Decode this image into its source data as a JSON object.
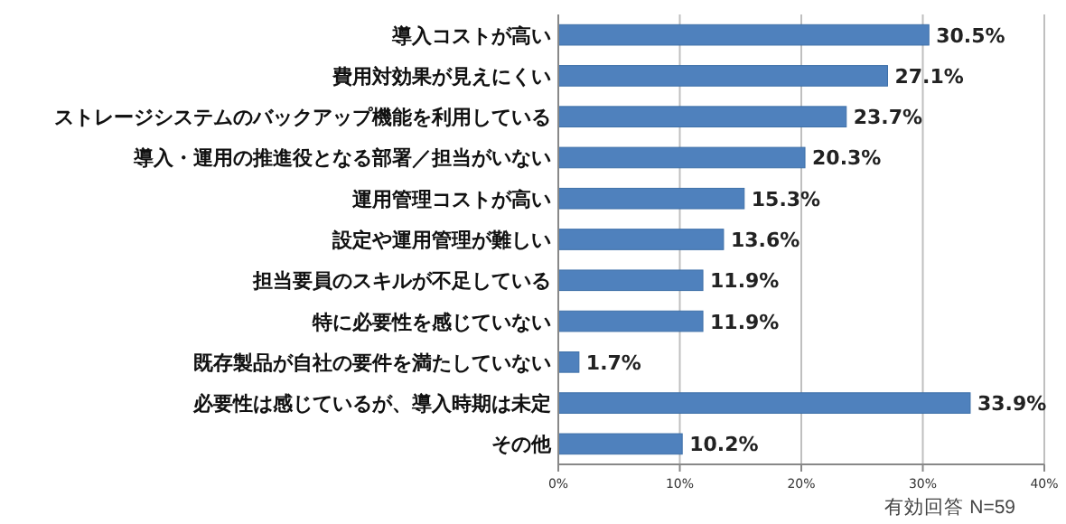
{
  "chart_data": {
    "type": "bar",
    "orientation": "horizontal",
    "categories": [
      "導入コストが高い",
      "費用対効果が見えにくい",
      "ストレージシステムのバックアップ機能を利用している",
      "導入・運用の推進役となる部署／担当がいない",
      "運用管理コストが高い",
      "設定や運用管理が難しい",
      "担当要員のスキルが不足している",
      "特に必要性を感じていない",
      "既存製品が自社の要件を満たしていない",
      "必要性は感じているが、導入時期は未定",
      "その他"
    ],
    "values": [
      30.5,
      27.1,
      23.7,
      20.3,
      15.3,
      13.6,
      11.9,
      11.9,
      1.7,
      33.9,
      10.2
    ],
    "value_labels": [
      "30.5%",
      "27.1%",
      "23.7%",
      "20.3%",
      "15.3%",
      "13.6%",
      "11.9%",
      "11.9%",
      "1.7%",
      "33.9%",
      "10.2%"
    ],
    "color": "#4f81bd",
    "xlim": [
      0,
      40
    ],
    "xticks": [
      {
        "value": 0,
        "label": "0%"
      },
      {
        "value": 10,
        "label": "10%"
      },
      {
        "value": 20,
        "label": "20%"
      },
      {
        "value": 30,
        "label": "30%"
      },
      {
        "value": 40,
        "label": "40%"
      }
    ],
    "grid": "x",
    "annotations": [
      "有効回答 N=59"
    ]
  }
}
